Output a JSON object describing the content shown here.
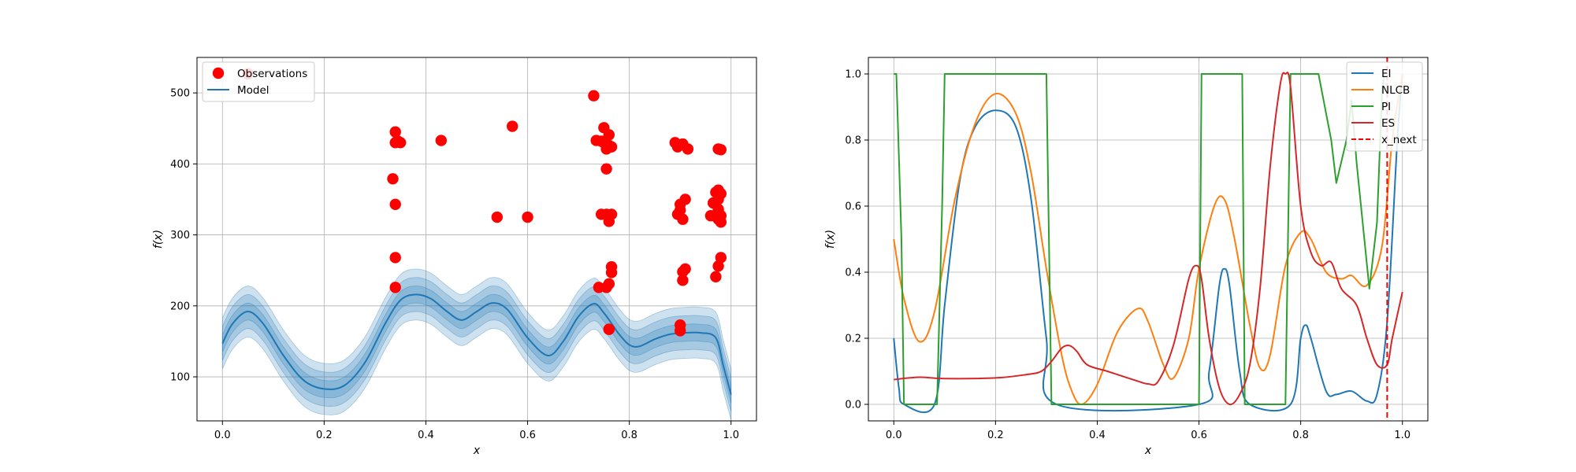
{
  "chart_data": [
    {
      "type": "scatter",
      "xlabel": "x",
      "ylabel": "f(x)",
      "xlim": [
        -0.05,
        1.05
      ],
      "ylim": [
        38,
        550
      ],
      "xticks": [
        "0.0",
        "0.2",
        "0.4",
        "0.6",
        "0.8",
        "1.0"
      ],
      "yticks": [
        "100",
        "200",
        "300",
        "400",
        "500"
      ],
      "grid": true,
      "legend_position": "top-left",
      "legend": [
        "Observations",
        "Model"
      ],
      "series": [
        {
          "name": "Observations",
          "kind": "scatter",
          "color": "#ff0000",
          "points": [
            [
              0.05,
              527
            ],
            [
              0.335,
              379
            ],
            [
              0.34,
              445
            ],
            [
              0.34,
              430
            ],
            [
              0.34,
              343
            ],
            [
              0.34,
              268
            ],
            [
              0.34,
              226
            ],
            [
              0.345,
              432
            ],
            [
              0.35,
              430
            ],
            [
              0.43,
              433
            ],
            [
              0.54,
              325
            ],
            [
              0.57,
              453
            ],
            [
              0.6,
              325
            ],
            [
              0.73,
              496
            ],
            [
              0.735,
              433
            ],
            [
              0.74,
              226
            ],
            [
              0.745,
              432
            ],
            [
              0.745,
              329
            ],
            [
              0.75,
              451
            ],
            [
              0.75,
              430
            ],
            [
              0.755,
              421
            ],
            [
              0.755,
              393
            ],
            [
              0.755,
              329
            ],
            [
              0.755,
              226
            ],
            [
              0.76,
              441
            ],
            [
              0.76,
              426
            ],
            [
              0.76,
              319
            ],
            [
              0.76,
              231
            ],
            [
              0.76,
              167
            ],
            [
              0.76,
              167
            ],
            [
              0.765,
              424
            ],
            [
              0.765,
              329
            ],
            [
              0.765,
              255
            ],
            [
              0.765,
              247
            ],
            [
              0.89,
              430
            ],
            [
              0.895,
              424
            ],
            [
              0.895,
              329
            ],
            [
              0.9,
              343
            ],
            [
              0.9,
              335
            ],
            [
              0.9,
              173
            ],
            [
              0.9,
              165
            ],
            [
              0.905,
              428
            ],
            [
              0.905,
              322
            ],
            [
              0.905,
              248
            ],
            [
              0.905,
              236
            ],
            [
              0.91,
              350
            ],
            [
              0.91,
              252
            ],
            [
              0.915,
              421
            ],
            [
              0.96,
              327
            ],
            [
              0.965,
              345
            ],
            [
              0.97,
              360
            ],
            [
              0.97,
              241
            ],
            [
              0.975,
              363
            ],
            [
              0.975,
              350
            ],
            [
              0.975,
              421
            ],
            [
              0.975,
              336
            ],
            [
              0.975,
              322
            ],
            [
              0.975,
              256
            ],
            [
              0.98,
              420
            ],
            [
              0.98,
              358
            ],
            [
              0.98,
              327
            ],
            [
              0.98,
              318
            ],
            [
              0.98,
              268
            ]
          ]
        },
        {
          "name": "Model",
          "kind": "line",
          "color": "#1f77b4",
          "band_std": 12,
          "points": [
            [
              0.0,
              147
            ],
            [
              0.02,
              175
            ],
            [
              0.05,
              192
            ],
            [
              0.08,
              175
            ],
            [
              0.12,
              130
            ],
            [
              0.16,
              95
            ],
            [
              0.2,
              83
            ],
            [
              0.24,
              88
            ],
            [
              0.28,
              120
            ],
            [
              0.32,
              175
            ],
            [
              0.35,
              208
            ],
            [
              0.38,
              216
            ],
            [
              0.41,
              210
            ],
            [
              0.44,
              193
            ],
            [
              0.47,
              180
            ],
            [
              0.5,
              192
            ],
            [
              0.53,
              204
            ],
            [
              0.56,
              195
            ],
            [
              0.6,
              155
            ],
            [
              0.64,
              130
            ],
            [
              0.67,
              150
            ],
            [
              0.7,
              185
            ],
            [
              0.73,
              203
            ],
            [
              0.75,
              190
            ],
            [
              0.77,
              170
            ],
            [
              0.78,
              160
            ],
            [
              0.8,
              145
            ],
            [
              0.82,
              143
            ],
            [
              0.85,
              153
            ],
            [
              0.88,
              160
            ],
            [
              0.91,
              162
            ],
            [
              0.94,
              162
            ],
            [
              0.97,
              155
            ],
            [
              0.985,
              115
            ],
            [
              1.0,
              75
            ]
          ]
        }
      ]
    },
    {
      "type": "line",
      "xlabel": "x",
      "ylabel": "f(x)",
      "xlim": [
        -0.05,
        1.05
      ],
      "ylim": [
        -0.05,
        1.05
      ],
      "xticks": [
        "0.0",
        "0.2",
        "0.4",
        "0.6",
        "0.8",
        "1.0"
      ],
      "yticks": [
        "0.0",
        "0.2",
        "0.4",
        "0.6",
        "0.8",
        "1.0"
      ],
      "grid": true,
      "legend_position": "top-right",
      "legend": [
        "EI",
        "NLCB",
        "PI",
        "ES",
        "x_next"
      ],
      "x_next": 0.97,
      "series": [
        {
          "name": "EI",
          "color": "#1f77b4",
          "points": [
            [
              0.0,
              0.2
            ],
            [
              0.01,
              0.05
            ],
            [
              0.02,
              0.0
            ],
            [
              0.08,
              0.0
            ],
            [
              0.1,
              0.3
            ],
            [
              0.13,
              0.68
            ],
            [
              0.16,
              0.84
            ],
            [
              0.2,
              0.89
            ],
            [
              0.24,
              0.84
            ],
            [
              0.27,
              0.62
            ],
            [
              0.3,
              0.2
            ],
            [
              0.32,
              0.0
            ],
            [
              0.6,
              0.0
            ],
            [
              0.62,
              0.1
            ],
            [
              0.64,
              0.36
            ],
            [
              0.65,
              0.41
            ],
            [
              0.66,
              0.36
            ],
            [
              0.68,
              0.1
            ],
            [
              0.7,
              0.0
            ],
            [
              0.78,
              0.0
            ],
            [
              0.8,
              0.2
            ],
            [
              0.81,
              0.24
            ],
            [
              0.82,
              0.2
            ],
            [
              0.85,
              0.04
            ],
            [
              0.87,
              0.03
            ],
            [
              0.9,
              0.04
            ],
            [
              0.93,
              0.01
            ],
            [
              0.95,
              0.03
            ],
            [
              0.97,
              0.25
            ],
            [
              0.99,
              0.8
            ],
            [
              1.0,
              1.0
            ]
          ]
        },
        {
          "name": "NLCB",
          "color": "#ff7f0e",
          "points": [
            [
              0.0,
              0.5
            ],
            [
              0.02,
              0.32
            ],
            [
              0.05,
              0.19
            ],
            [
              0.08,
              0.28
            ],
            [
              0.12,
              0.62
            ],
            [
              0.16,
              0.85
            ],
            [
              0.2,
              0.94
            ],
            [
              0.24,
              0.88
            ],
            [
              0.27,
              0.7
            ],
            [
              0.3,
              0.41
            ],
            [
              0.33,
              0.15
            ],
            [
              0.35,
              0.04
            ],
            [
              0.37,
              0.0
            ],
            [
              0.4,
              0.06
            ],
            [
              0.44,
              0.22
            ],
            [
              0.48,
              0.29
            ],
            [
              0.5,
              0.25
            ],
            [
              0.53,
              0.12
            ],
            [
              0.55,
              0.08
            ],
            [
              0.58,
              0.2
            ],
            [
              0.6,
              0.41
            ],
            [
              0.63,
              0.6
            ],
            [
              0.65,
              0.62
            ],
            [
              0.67,
              0.5
            ],
            [
              0.7,
              0.24
            ],
            [
              0.72,
              0.11
            ],
            [
              0.74,
              0.15
            ],
            [
              0.77,
              0.42
            ],
            [
              0.8,
              0.52
            ],
            [
              0.82,
              0.5
            ],
            [
              0.85,
              0.4
            ],
            [
              0.88,
              0.38
            ],
            [
              0.9,
              0.39
            ],
            [
              0.93,
              0.36
            ],
            [
              0.96,
              0.48
            ],
            [
              0.98,
              0.8
            ],
            [
              1.0,
              1.0
            ]
          ]
        },
        {
          "name": "PI",
          "color": "#2ca02c",
          "points": [
            [
              0.0,
              1.0
            ],
            [
              0.005,
              1.0
            ],
            [
              0.015,
              0.5
            ],
            [
              0.02,
              0.0
            ],
            [
              0.085,
              0.0
            ],
            [
              0.095,
              0.6
            ],
            [
              0.1,
              1.0
            ],
            [
              0.3,
              1.0
            ],
            [
              0.305,
              0.5
            ],
            [
              0.31,
              0.0
            ],
            [
              0.6,
              0.0
            ],
            [
              0.605,
              1.0
            ],
            [
              0.685,
              1.0
            ],
            [
              0.69,
              0.0
            ],
            [
              0.77,
              0.0
            ],
            [
              0.78,
              1.0
            ],
            [
              0.835,
              1.0
            ],
            [
              0.86,
              0.8
            ],
            [
              0.87,
              0.67
            ],
            [
              0.89,
              0.8
            ],
            [
              0.9,
              0.92
            ],
            [
              0.91,
              0.73
            ],
            [
              0.935,
              0.35
            ],
            [
              0.95,
              0.55
            ],
            [
              0.96,
              0.95
            ],
            [
              0.965,
              1.0
            ]
          ]
        },
        {
          "name": "ES",
          "color": "#d62728",
          "points": [
            [
              0.0,
              0.075
            ],
            [
              0.05,
              0.082
            ],
            [
              0.1,
              0.078
            ],
            [
              0.2,
              0.08
            ],
            [
              0.26,
              0.09
            ],
            [
              0.29,
              0.1
            ],
            [
              0.31,
              0.13
            ],
            [
              0.33,
              0.17
            ],
            [
              0.345,
              0.178
            ],
            [
              0.36,
              0.16
            ],
            [
              0.38,
              0.12
            ],
            [
              0.42,
              0.1
            ],
            [
              0.46,
              0.08
            ],
            [
              0.48,
              0.07
            ],
            [
              0.5,
              0.062
            ],
            [
              0.52,
              0.07
            ],
            [
              0.55,
              0.18
            ],
            [
              0.58,
              0.38
            ],
            [
              0.595,
              0.42
            ],
            [
              0.605,
              0.38
            ],
            [
              0.62,
              0.2
            ],
            [
              0.64,
              0.05
            ],
            [
              0.66,
              0.0
            ],
            [
              0.68,
              0.03
            ],
            [
              0.7,
              0.12
            ],
            [
              0.72,
              0.35
            ],
            [
              0.74,
              0.72
            ],
            [
              0.76,
              0.97
            ],
            [
              0.77,
              1.0
            ],
            [
              0.78,
              0.96
            ],
            [
              0.8,
              0.6
            ],
            [
              0.82,
              0.46
            ],
            [
              0.84,
              0.42
            ],
            [
              0.86,
              0.43
            ],
            [
              0.88,
              0.35
            ],
            [
              0.91,
              0.3
            ],
            [
              0.93,
              0.2
            ],
            [
              0.95,
              0.12
            ],
            [
              0.97,
              0.12
            ],
            [
              0.98,
              0.2
            ],
            [
              1.0,
              0.34
            ]
          ]
        }
      ]
    }
  ]
}
